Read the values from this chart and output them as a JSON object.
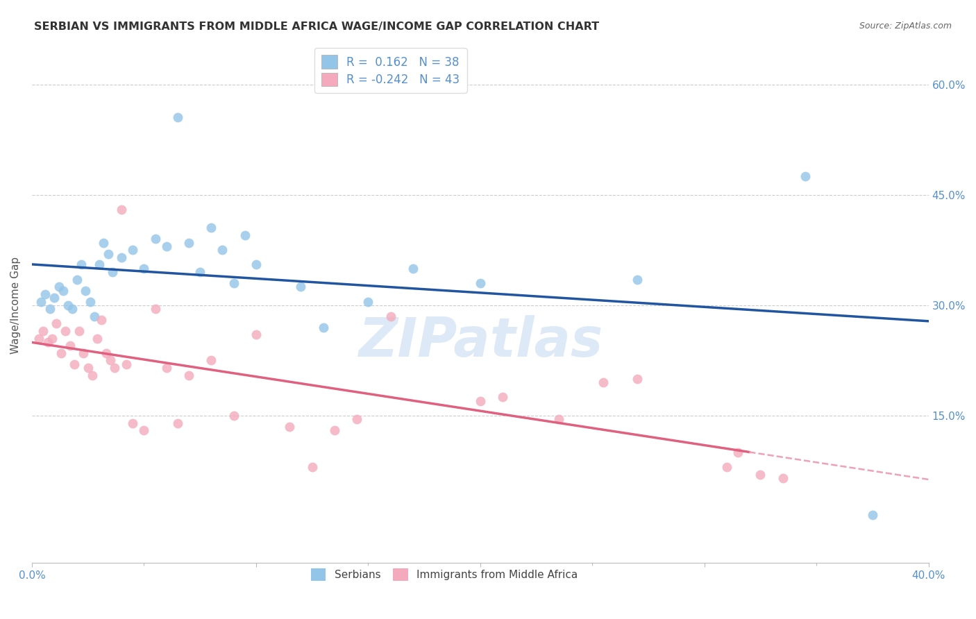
{
  "title": "SERBIAN VS IMMIGRANTS FROM MIDDLE AFRICA WAGE/INCOME GAP CORRELATION CHART",
  "source": "Source: ZipAtlas.com",
  "ylabel": "Wage/Income Gap",
  "ytick_vals": [
    0.15,
    0.3,
    0.45,
    0.6
  ],
  "ytick_labels": [
    "15.0%",
    "30.0%",
    "45.0%",
    "60.0%"
  ],
  "xtick_vals": [
    0.0,
    0.1,
    0.2,
    0.3,
    0.4
  ],
  "xtick_labels": [
    "0.0%",
    "",
    "",
    "",
    "40.0%"
  ],
  "xlim": [
    0.0,
    0.4
  ],
  "ylim": [
    -0.05,
    0.65
  ],
  "watermark": "ZIPatlas",
  "legend_serbian_r": "0.162",
  "legend_serbian_n": "38",
  "legend_immigrant_r": "-0.242",
  "legend_immigrant_n": "43",
  "serbian_color": "#92C5E8",
  "immigrant_color": "#F4AABC",
  "serbian_line_color": "#2255A0",
  "immigrant_line_color": "#E06080",
  "immigrant_dash_color": "#F0A0B8",
  "background_color": "#FFFFFF",
  "grid_color": "#CCCCCC",
  "title_color": "#333333",
  "source_color": "#666666",
  "tick_color": "#5590CC",
  "ylabel_color": "#555555",
  "serbian_x": [
    0.004,
    0.006,
    0.008,
    0.01,
    0.012,
    0.014,
    0.016,
    0.018,
    0.02,
    0.022,
    0.024,
    0.026,
    0.028,
    0.03,
    0.032,
    0.034,
    0.036,
    0.04,
    0.045,
    0.05,
    0.055,
    0.06,
    0.065,
    0.07,
    0.075,
    0.08,
    0.085,
    0.09,
    0.095,
    0.1,
    0.12,
    0.13,
    0.15,
    0.17,
    0.2,
    0.27,
    0.345,
    0.375
  ],
  "serbian_y": [
    0.305,
    0.315,
    0.295,
    0.31,
    0.325,
    0.32,
    0.3,
    0.295,
    0.335,
    0.355,
    0.32,
    0.305,
    0.285,
    0.355,
    0.385,
    0.37,
    0.345,
    0.365,
    0.375,
    0.35,
    0.39,
    0.38,
    0.555,
    0.385,
    0.345,
    0.405,
    0.375,
    0.33,
    0.395,
    0.355,
    0.325,
    0.27,
    0.305,
    0.35,
    0.33,
    0.335,
    0.475,
    0.015
  ],
  "immigrant_x": [
    0.003,
    0.005,
    0.007,
    0.009,
    0.011,
    0.013,
    0.015,
    0.017,
    0.019,
    0.021,
    0.023,
    0.025,
    0.027,
    0.029,
    0.031,
    0.033,
    0.035,
    0.037,
    0.04,
    0.042,
    0.045,
    0.05,
    0.055,
    0.06,
    0.065,
    0.07,
    0.08,
    0.09,
    0.1,
    0.115,
    0.125,
    0.135,
    0.145,
    0.16,
    0.2,
    0.21,
    0.235,
    0.255,
    0.27,
    0.31,
    0.315,
    0.325,
    0.335
  ],
  "immigrant_y": [
    0.255,
    0.265,
    0.25,
    0.255,
    0.275,
    0.235,
    0.265,
    0.245,
    0.22,
    0.265,
    0.235,
    0.215,
    0.205,
    0.255,
    0.28,
    0.235,
    0.225,
    0.215,
    0.43,
    0.22,
    0.14,
    0.13,
    0.295,
    0.215,
    0.14,
    0.205,
    0.225,
    0.15,
    0.26,
    0.135,
    0.08,
    0.13,
    0.145,
    0.285,
    0.17,
    0.175,
    0.145,
    0.195,
    0.2,
    0.08,
    0.1,
    0.07,
    0.065
  ]
}
